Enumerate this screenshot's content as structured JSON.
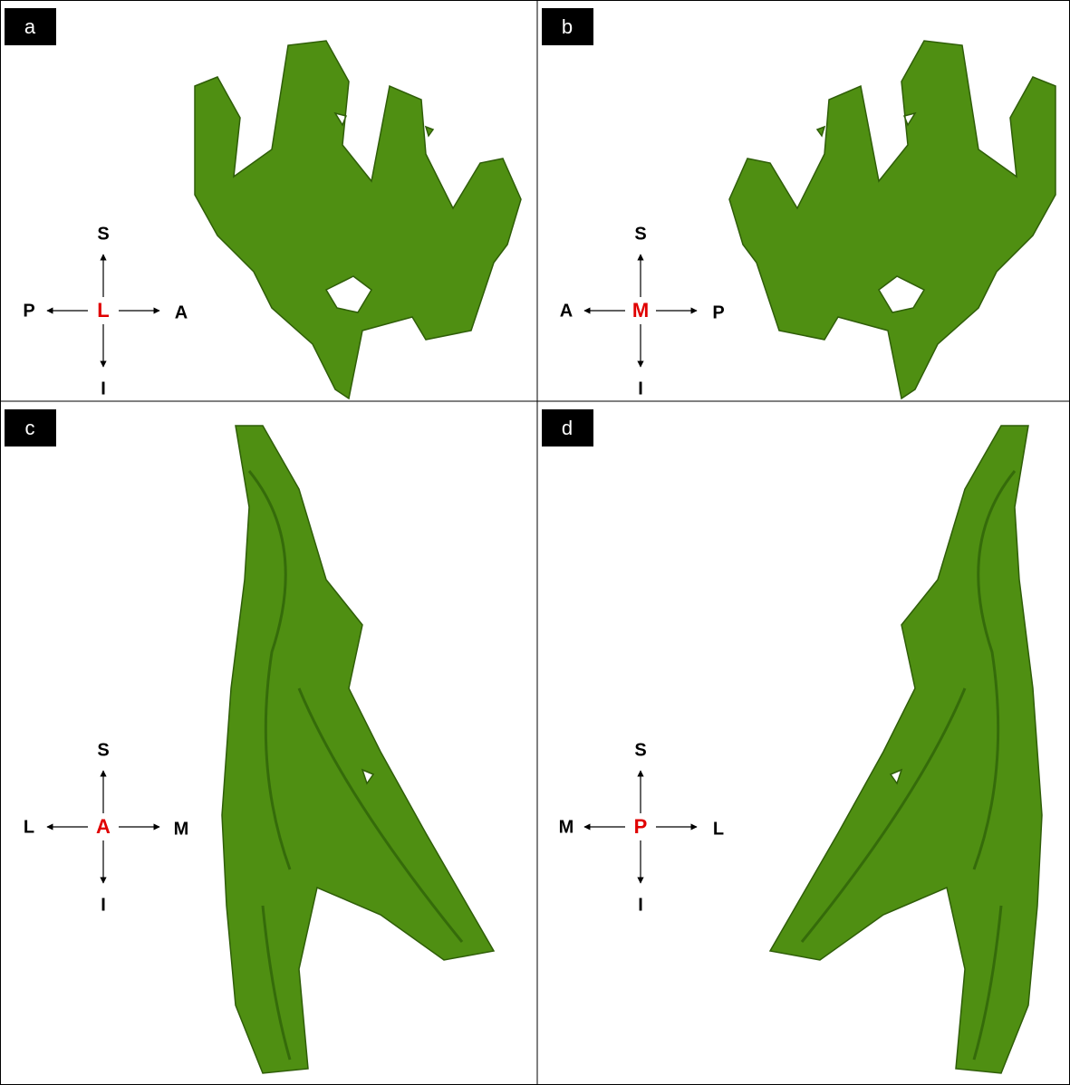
{
  "panels": [
    {
      "label": "a",
      "compass": {
        "center": "L",
        "up": "S",
        "down": "I",
        "left": "P",
        "right": "A"
      }
    },
    {
      "label": "b",
      "compass": {
        "center": "M",
        "up": "S",
        "down": "I",
        "left": "A",
        "right": "P"
      }
    },
    {
      "label": "c",
      "compass": {
        "center": "A",
        "up": "S",
        "down": "I",
        "left": "L",
        "right": "M"
      }
    },
    {
      "label": "d",
      "compass": {
        "center": "P",
        "up": "S",
        "down": "I",
        "left": "M",
        "right": "L"
      }
    }
  ]
}
